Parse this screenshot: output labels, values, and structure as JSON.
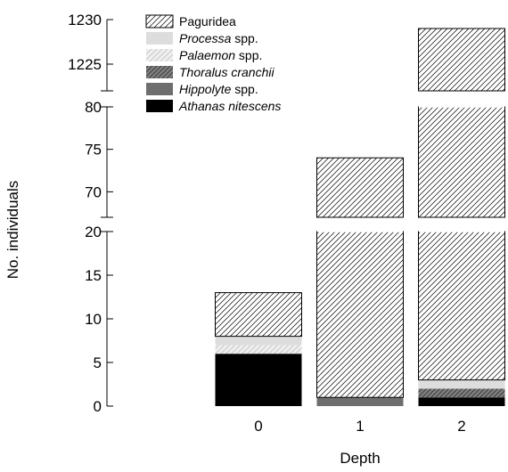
{
  "chart_data": {
    "type": "bar",
    "stacked": true,
    "broken_y_axis": true,
    "xlabel": "Depth",
    "ylabel": "No. individuals",
    "categories": [
      "0",
      "1",
      "2"
    ],
    "y_segments": [
      {
        "range": [
          0,
          20
        ],
        "ticks": [
          0,
          5,
          10,
          15,
          20
        ]
      },
      {
        "range": [
          67,
          80
        ],
        "ticks": [
          70,
          75,
          80
        ]
      },
      {
        "range": [
          1222,
          1230
        ],
        "ticks": [
          1225,
          1230
        ]
      }
    ],
    "series": [
      {
        "name": "Athanas nitescens",
        "fill": "#000000",
        "pattern": "solid",
        "values": [
          6,
          0,
          1
        ]
      },
      {
        "name": "Hippolyte spp.",
        "fill": "#6e6e6e",
        "pattern": "solid",
        "values": [
          0,
          1,
          0
        ]
      },
      {
        "name": "Thoralus cranchii",
        "fill": "#7a7a7a",
        "pattern": "hatch-dark",
        "values": [
          0,
          0,
          1
        ]
      },
      {
        "name": "Palaemon spp.",
        "fill": "#cccccc",
        "pattern": "hatch-light",
        "values": [
          1,
          0,
          0
        ]
      },
      {
        "name": "Processa spp.",
        "fill": "#dddddd",
        "pattern": "solid",
        "values": [
          1,
          0,
          1
        ]
      },
      {
        "name": "Paguridea",
        "fill": "#ffffff",
        "pattern": "hatch",
        "values": [
          5,
          73,
          1226
        ]
      }
    ],
    "legend": {
      "placement": "top-left",
      "order": [
        "Paguridea",
        "Processa spp.",
        "Palaemon spp.",
        "Thoralus cranchii",
        "Hippolyte spp.",
        "Athanas nitescens"
      ],
      "entries": [
        {
          "italic": "",
          "plain": "Paguridea"
        },
        {
          "italic": "Processa",
          "plain": " spp."
        },
        {
          "italic": "Palaemon",
          "plain": " spp."
        },
        {
          "italic": "Thoralus cranchii",
          "plain": ""
        },
        {
          "italic": "Hippolyte",
          "plain": " spp."
        },
        {
          "italic": "Athanas nitescens",
          "plain": ""
        }
      ]
    },
    "grid": false
  }
}
